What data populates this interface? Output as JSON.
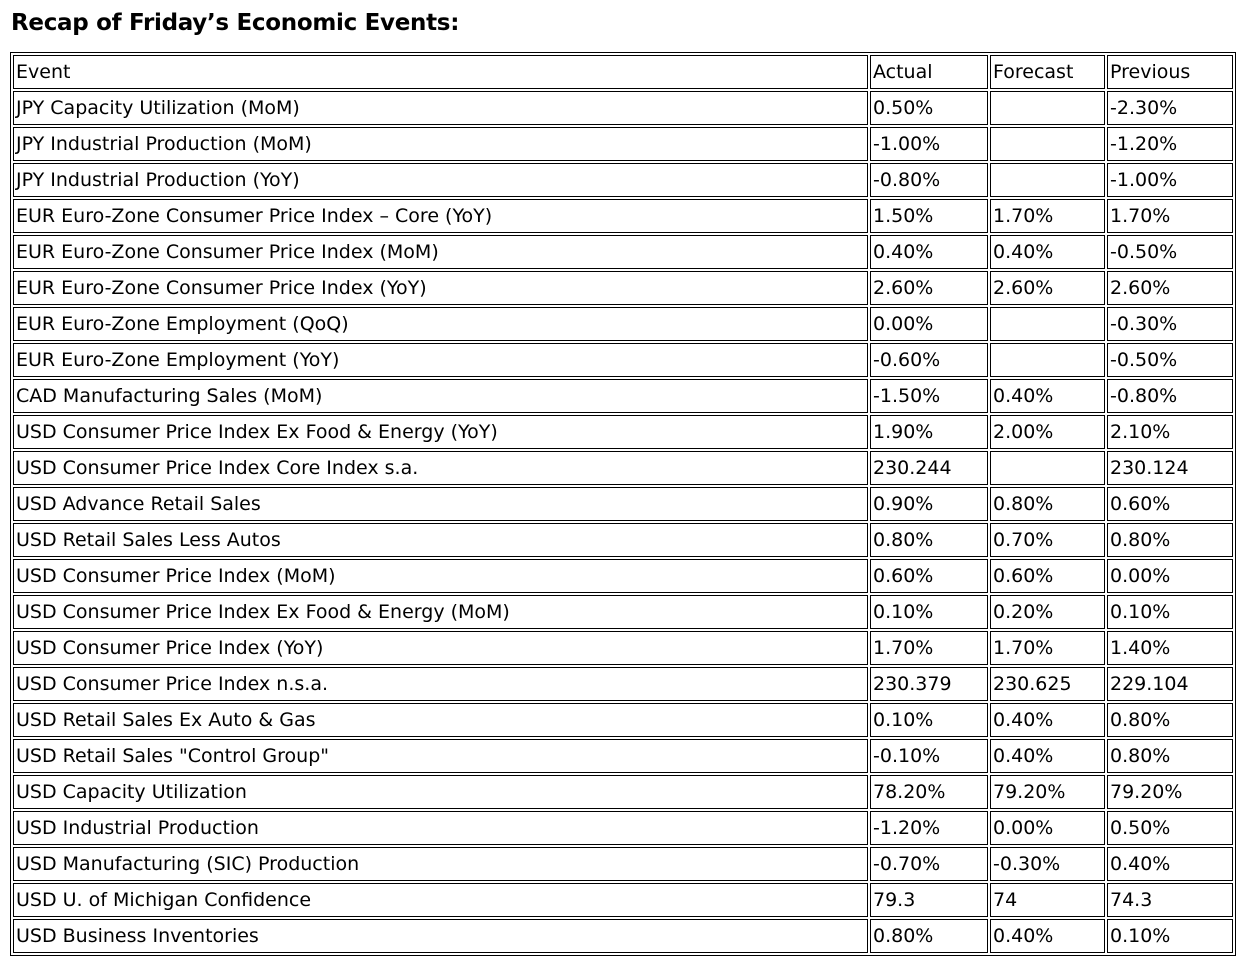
{
  "page_title": "Recap of Friday’s Economic Events:",
  "colors": {
    "text": "#000000",
    "border": "#000000",
    "background": "#ffffff"
  },
  "chart_data": {
    "type": "table",
    "title": "Recap of Friday’s Economic Events:",
    "columns": [
      "Event",
      "Actual",
      "Forecast",
      "Previous"
    ],
    "rows": [
      [
        "JPY Capacity Utilization (MoM)",
        "0.50%",
        "",
        "-2.30%"
      ],
      [
        "JPY Industrial Production (MoM)",
        "-1.00%",
        "",
        "-1.20%"
      ],
      [
        "JPY Industrial Production (YoY)",
        "-0.80%",
        "",
        "-1.00%"
      ],
      [
        "EUR Euro-Zone Consumer Price Index – Core (YoY)",
        "1.50%",
        "1.70%",
        "1.70%"
      ],
      [
        "EUR Euro-Zone Consumer Price Index (MoM)",
        "0.40%",
        "0.40%",
        "-0.50%"
      ],
      [
        "EUR Euro-Zone Consumer Price Index (YoY)",
        "2.60%",
        "2.60%",
        "2.60%"
      ],
      [
        "EUR Euro-Zone Employment (QoQ)",
        "0.00%",
        "",
        "-0.30%"
      ],
      [
        "EUR Euro-Zone Employment (YoY)",
        "-0.60%",
        "",
        "-0.50%"
      ],
      [
        "CAD Manufacturing Sales (MoM)",
        "-1.50%",
        "0.40%",
        "-0.80%"
      ],
      [
        "USD Consumer Price Index Ex Food & Energy (YoY)",
        "1.90%",
        "2.00%",
        "2.10%"
      ],
      [
        "USD Consumer Price Index Core Index s.a.",
        "230.244",
        "",
        "230.124"
      ],
      [
        "USD Advance Retail Sales",
        "0.90%",
        "0.80%",
        "0.60%"
      ],
      [
        "USD Retail Sales Less Autos",
        "0.80%",
        "0.70%",
        "0.80%"
      ],
      [
        "USD Consumer Price Index (MoM)",
        "0.60%",
        "0.60%",
        "0.00%"
      ],
      [
        "USD Consumer Price Index Ex Food & Energy (MoM)",
        "0.10%",
        "0.20%",
        "0.10%"
      ],
      [
        "USD Consumer Price Index (YoY)",
        "1.70%",
        "1.70%",
        "1.40%"
      ],
      [
        "USD Consumer Price Index n.s.a.",
        "230.379",
        "230.625",
        "229.104"
      ],
      [
        "USD Retail Sales Ex Auto & Gas",
        "0.10%",
        "0.40%",
        "0.80%"
      ],
      [
        "USD Retail Sales \"Control Group\"",
        "-0.10%",
        "0.40%",
        "0.80%"
      ],
      [
        "USD Capacity Utilization",
        "78.20%",
        "79.20%",
        "79.20%"
      ],
      [
        "USD Industrial Production",
        "-1.20%",
        "0.00%",
        "0.50%"
      ],
      [
        "USD Manufacturing (SIC) Production",
        "-0.70%",
        "-0.30%",
        "0.40%"
      ],
      [
        "USD U. of Michigan Confidence",
        "79.3",
        "74",
        "74.3"
      ],
      [
        "USD Business Inventories",
        "0.80%",
        "0.40%",
        "0.10%"
      ]
    ]
  }
}
